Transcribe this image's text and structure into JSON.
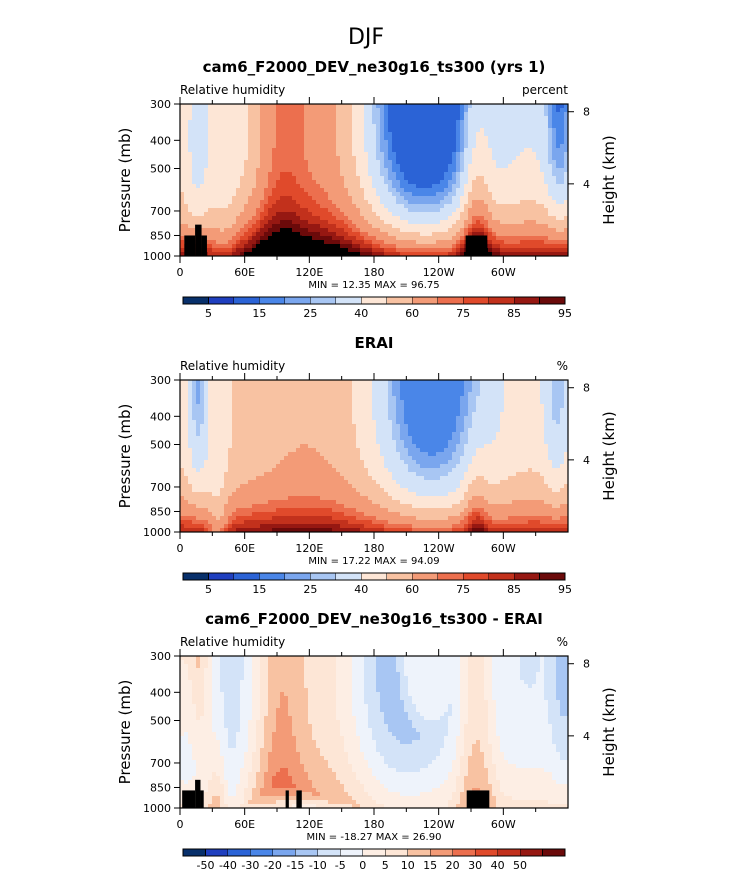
{
  "figure": {
    "title": "DJF"
  },
  "xaxis": {
    "ticks": [
      "0",
      "60E",
      "120E",
      "180",
      "120W",
      "60W"
    ],
    "values": [
      0,
      60,
      120,
      180,
      240,
      300
    ],
    "range": [
      0,
      360
    ]
  },
  "pressure_axis": {
    "label": "Pressure (mb)",
    "ticks": [
      "300",
      "400",
      "500",
      "700",
      "850",
      "1000"
    ],
    "values": [
      300,
      400,
      500,
      700,
      850,
      1000
    ]
  },
  "height_axis": {
    "label": "Height (km)",
    "ticks": [
      "8",
      "4"
    ],
    "values": [
      8,
      4
    ]
  },
  "colors": {
    "abs": [
      "#08306b",
      "#1f3fbf",
      "#2b63d6",
      "#4a86e8",
      "#7aa6ee",
      "#a8c6f3",
      "#d3e3f8",
      "#fde6d6",
      "#f8c2a2",
      "#f39b77",
      "#ec6f4e",
      "#e04a2b",
      "#c2311c",
      "#961812",
      "#6b0a0a"
    ],
    "diff": [
      "#08306b",
      "#1f3fbf",
      "#2b63d6",
      "#4a86e8",
      "#7aa6ee",
      "#a8c6f3",
      "#d3e3f8",
      "#eef3fb",
      "#fdeee4",
      "#fde6d6",
      "#f8c2a2",
      "#f39b77",
      "#ec6f4e",
      "#e04a2b",
      "#c2311c",
      "#961812",
      "#6b0a0a"
    ]
  },
  "chart_data": [
    {
      "type": "heatmap",
      "title": "cam6_F2000_DEV_ne30g16_ts300 (yrs 1)",
      "left_label": "Relative humidity",
      "right_label": "percent",
      "min_text": "MIN =   12.35   MAX =   96.75",
      "min": 12.35,
      "max": 96.75,
      "colorbar_labels": [
        "5",
        "15",
        "25",
        "40",
        "60",
        "75",
        "85",
        "95"
      ],
      "grid": false
    },
    {
      "type": "heatmap",
      "title": "ERAI",
      "left_label": "Relative humidity",
      "right_label": "%",
      "min_text": "MIN =   17.22   MAX =   94.09",
      "min": 17.22,
      "max": 94.09,
      "colorbar_labels": [
        "5",
        "15",
        "25",
        "40",
        "60",
        "75",
        "85",
        "95"
      ],
      "grid": false
    },
    {
      "type": "heatmap",
      "title": "cam6_F2000_DEV_ne30g16_ts300 - ERAI",
      "left_label": "Relative humidity",
      "right_label": "%",
      "min_text": "MIN = -18.27   MAX =   26.90",
      "min": -18.27,
      "max": 26.9,
      "colorbar_labels": [
        "-50",
        "-40",
        "-30",
        "-20",
        "-15",
        "-10",
        "-5",
        "0",
        "5",
        "10",
        "15",
        "20",
        "30",
        "40",
        "50"
      ],
      "grid": false
    }
  ]
}
